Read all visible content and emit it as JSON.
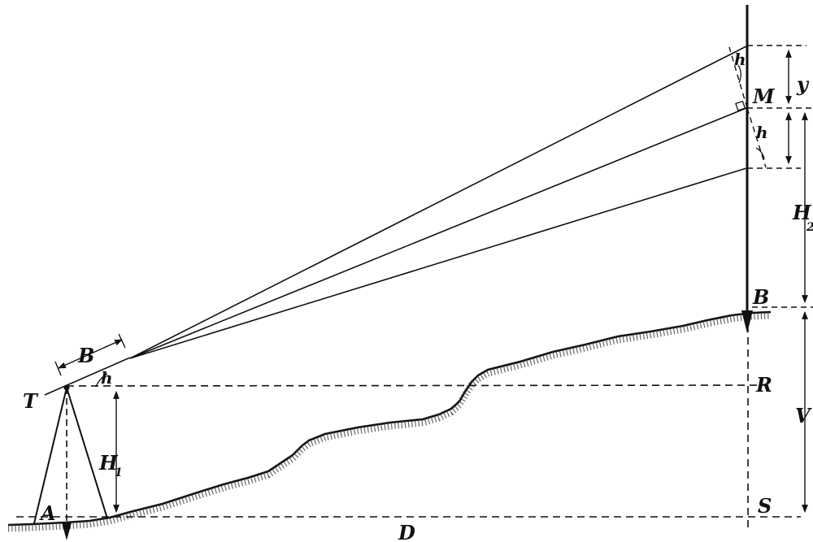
{
  "labels": {
    "T": "T",
    "A": "A",
    "B_staff": "B",
    "B_base": "B",
    "R": "R",
    "S": "S",
    "M": "M",
    "D": "D",
    "y": "y",
    "V": "V",
    "H1": "H",
    "H1_sub": "1",
    "H2": "H",
    "H2_sub": "2",
    "h_alt": "h",
    "h_top": "h",
    "h_prime": "h"
  },
  "colors": {
    "ink": "#111111",
    "hatch": "#333333",
    "background": "#ffffff"
  }
}
